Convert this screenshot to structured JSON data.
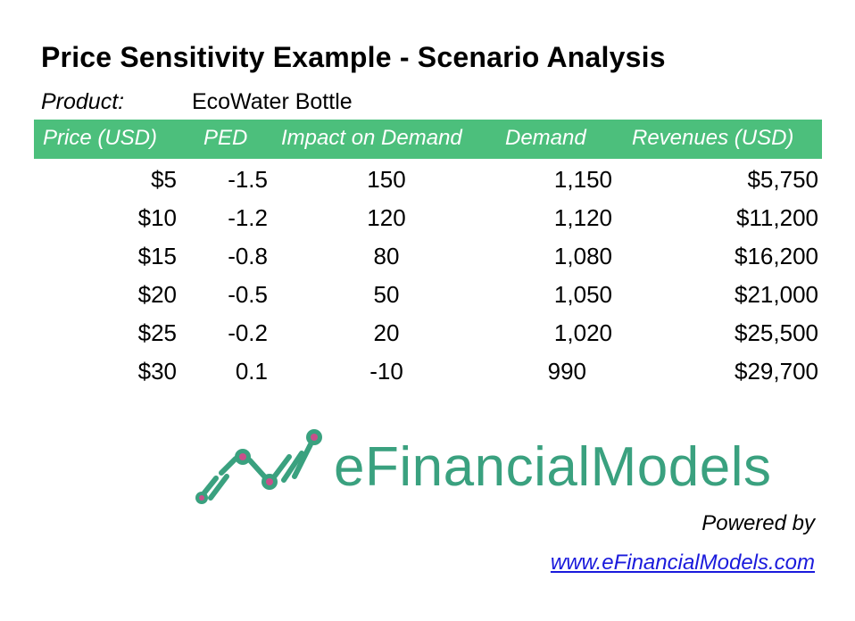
{
  "title": "Price Sensitivity Example - Scenario Analysis",
  "product": {
    "label": "Product:",
    "value": "EcoWater Bottle"
  },
  "table": {
    "headers": [
      "Price (USD)",
      "PED",
      "Impact on Demand",
      "Demand",
      "Revenues (USD)"
    ],
    "header_color": "#4cbf7c",
    "rows": [
      {
        "price": "$5",
        "ped": "-1.5",
        "impact": "150",
        "demand": "1,150",
        "revenue": "$5,750"
      },
      {
        "price": "$10",
        "ped": "-1.2",
        "impact": "120",
        "demand": "1,120",
        "revenue": "$11,200"
      },
      {
        "price": "$15",
        "ped": "-0.8",
        "impact": "80",
        "demand": "1,080",
        "revenue": "$16,200"
      },
      {
        "price": "$20",
        "ped": "-0.5",
        "impact": "50",
        "demand": "1,050",
        "revenue": "$21,000"
      },
      {
        "price": "$25",
        "ped": "-0.2",
        "impact": "20",
        "demand": "1,020",
        "revenue": "$25,500"
      },
      {
        "price": "$30",
        "ped": "0.1",
        "impact": "-10",
        "demand": "990",
        "revenue": "$29,700"
      }
    ]
  },
  "logo": {
    "text": "eFinancialModels",
    "color": "#3aa17f",
    "icon": "rising-line-chart-icon"
  },
  "footer": {
    "powered_by": "Powered by",
    "link_text": "www.eFinancialModels.com",
    "link_color": "#1a1adc"
  }
}
